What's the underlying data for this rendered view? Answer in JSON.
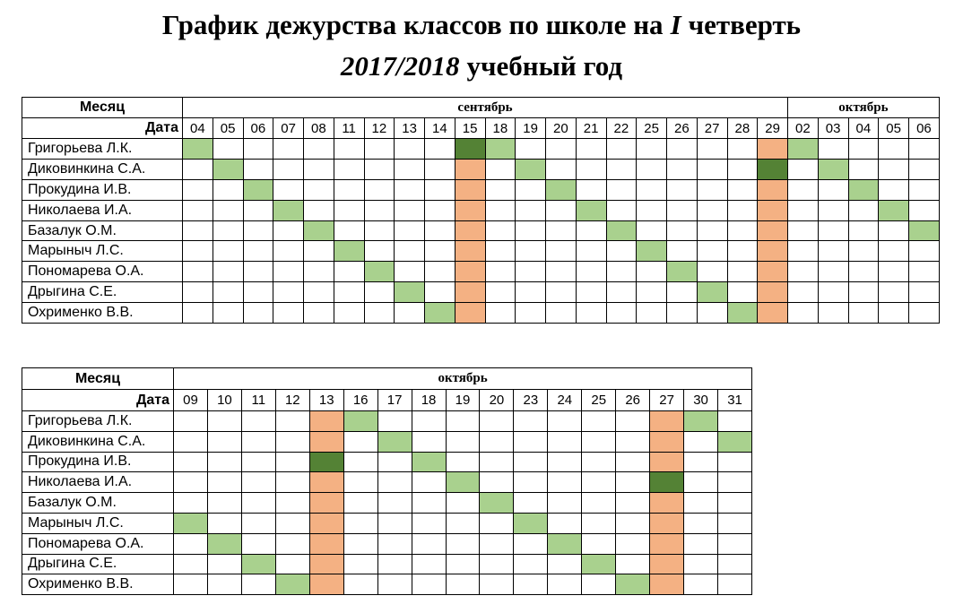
{
  "header": {
    "title": [
      "График дежурства классов по школе на",
      "I",
      "четверть"
    ],
    "subtitle": [
      "2017/2018",
      "учебный год"
    ]
  },
  "tables": [
    {
      "month_label": "Месяц",
      "date_label": "Дата",
      "months": [
        {
          "name": "сентябрь",
          "dates": [
            "04",
            "05",
            "06",
            "07",
            "08",
            "11",
            "12",
            "13",
            "14",
            "15",
            "18",
            "19",
            "20",
            "21",
            "22",
            "25",
            "26",
            "27",
            "28",
            "29"
          ]
        },
        {
          "name": "октябрь",
          "dates": [
            "02",
            "03",
            "04",
            "05",
            "06"
          ]
        }
      ],
      "rows": [
        {
          "name": "Григорьева Л.К.",
          "fills": [
            "#a9d18e",
            null,
            null,
            null,
            null,
            null,
            null,
            null,
            null,
            "#548235",
            "#a9d18e",
            null,
            null,
            null,
            null,
            null,
            null,
            null,
            null,
            "#f4b183",
            "#a9d18e",
            null,
            null,
            null,
            null
          ]
        },
        {
          "name": "Диковинкина С.А.",
          "fills": [
            null,
            "#a9d18e",
            null,
            null,
            null,
            null,
            null,
            null,
            null,
            "#f4b183",
            null,
            "#a9d18e",
            null,
            null,
            null,
            null,
            null,
            null,
            null,
            "#548235",
            null,
            "#a9d18e",
            null,
            null,
            null
          ]
        },
        {
          "name": "Прокудина И.В.",
          "fills": [
            null,
            null,
            "#a9d18e",
            null,
            null,
            null,
            null,
            null,
            null,
            "#f4b183",
            null,
            null,
            "#a9d18e",
            null,
            null,
            null,
            null,
            null,
            null,
            "#f4b183",
            null,
            null,
            "#a9d18e",
            null,
            null
          ]
        },
        {
          "name": "Николаева И.А.",
          "fills": [
            null,
            null,
            null,
            "#a9d18e",
            null,
            null,
            null,
            null,
            null,
            "#f4b183",
            null,
            null,
            null,
            "#a9d18e",
            null,
            null,
            null,
            null,
            null,
            "#f4b183",
            null,
            null,
            null,
            "#a9d18e",
            null
          ]
        },
        {
          "name": "Базалук О.М.",
          "fills": [
            null,
            null,
            null,
            null,
            "#a9d18e",
            null,
            null,
            null,
            null,
            "#f4b183",
            null,
            null,
            null,
            null,
            "#a9d18e",
            null,
            null,
            null,
            null,
            "#f4b183",
            null,
            null,
            null,
            null,
            "#a9d18e"
          ]
        },
        {
          "name": "Марыныч Л.С.",
          "fills": [
            null,
            null,
            null,
            null,
            null,
            "#a9d18e",
            null,
            null,
            null,
            "#f4b183",
            null,
            null,
            null,
            null,
            null,
            "#a9d18e",
            null,
            null,
            null,
            "#f4b183",
            null,
            null,
            null,
            null,
            null
          ]
        },
        {
          "name": "Пономарева О.А.",
          "fills": [
            null,
            null,
            null,
            null,
            null,
            null,
            "#a9d18e",
            null,
            null,
            "#f4b183",
            null,
            null,
            null,
            null,
            null,
            null,
            "#a9d18e",
            null,
            null,
            "#f4b183",
            null,
            null,
            null,
            null,
            null
          ]
        },
        {
          "name": "Дрыгина С.Е.",
          "fills": [
            null,
            null,
            null,
            null,
            null,
            null,
            null,
            "#a9d18e",
            null,
            "#f4b183",
            null,
            null,
            null,
            null,
            null,
            null,
            null,
            "#a9d18e",
            null,
            "#f4b183",
            null,
            null,
            null,
            null,
            null
          ]
        },
        {
          "name": "Охрименко В.В.",
          "fills": [
            null,
            null,
            null,
            null,
            null,
            null,
            null,
            null,
            "#a9d18e",
            "#f4b183",
            null,
            null,
            null,
            null,
            null,
            null,
            null,
            null,
            "#a9d18e",
            "#f4b183",
            null,
            null,
            null,
            null,
            null
          ]
        }
      ]
    },
    {
      "month_label": "Месяц",
      "date_label": "Дата",
      "months": [
        {
          "name": "октябрь",
          "dates": [
            "09",
            "10",
            "11",
            "12",
            "13",
            "16",
            "17",
            "18",
            "19",
            "20",
            "23",
            "24",
            "25",
            "26",
            "27",
            "30",
            "31"
          ]
        }
      ],
      "rows": [
        {
          "name": "Григорьева Л.К.",
          "fills": [
            null,
            null,
            null,
            null,
            "#f4b183",
            "#a9d18e",
            null,
            null,
            null,
            null,
            null,
            null,
            null,
            null,
            "#f4b183",
            "#a9d18e",
            null
          ]
        },
        {
          "name": "Диковинкина С.А.",
          "fills": [
            null,
            null,
            null,
            null,
            "#f4b183",
            null,
            "#a9d18e",
            null,
            null,
            null,
            null,
            null,
            null,
            null,
            "#f4b183",
            null,
            "#a9d18e"
          ]
        },
        {
          "name": "Прокудина И.В.",
          "fills": [
            null,
            null,
            null,
            null,
            "#548235",
            null,
            null,
            "#a9d18e",
            null,
            null,
            null,
            null,
            null,
            null,
            "#f4b183",
            null,
            null
          ]
        },
        {
          "name": "Николаева И.А.",
          "fills": [
            null,
            null,
            null,
            null,
            "#f4b183",
            null,
            null,
            null,
            "#a9d18e",
            null,
            null,
            null,
            null,
            null,
            "#548235",
            null,
            null
          ]
        },
        {
          "name": "Базалук О.М.",
          "fills": [
            null,
            null,
            null,
            null,
            "#f4b183",
            null,
            null,
            null,
            null,
            "#a9d18e",
            null,
            null,
            null,
            null,
            "#f4b183",
            null,
            null
          ]
        },
        {
          "name": "Марыныч Л.С.",
          "fills": [
            "#a9d18e",
            null,
            null,
            null,
            "#f4b183",
            null,
            null,
            null,
            null,
            null,
            "#a9d18e",
            null,
            null,
            null,
            "#f4b183",
            null,
            null
          ]
        },
        {
          "name": "Пономарева О.А.",
          "fills": [
            null,
            "#a9d18e",
            null,
            null,
            "#f4b183",
            null,
            null,
            null,
            null,
            null,
            null,
            "#a9d18e",
            null,
            null,
            "#f4b183",
            null,
            null
          ]
        },
        {
          "name": "Дрыгина С.Е.",
          "fills": [
            null,
            null,
            "#a9d18e",
            null,
            "#f4b183",
            null,
            null,
            null,
            null,
            null,
            null,
            null,
            "#a9d18e",
            null,
            "#f4b183",
            null,
            null
          ]
        },
        {
          "name": "Охрименко В.В.",
          "fills": [
            null,
            null,
            null,
            "#a9d18e",
            "#f4b183",
            null,
            null,
            null,
            null,
            null,
            null,
            null,
            null,
            "#a9d18e",
            "#f4b183",
            null,
            null
          ]
        }
      ]
    }
  ]
}
